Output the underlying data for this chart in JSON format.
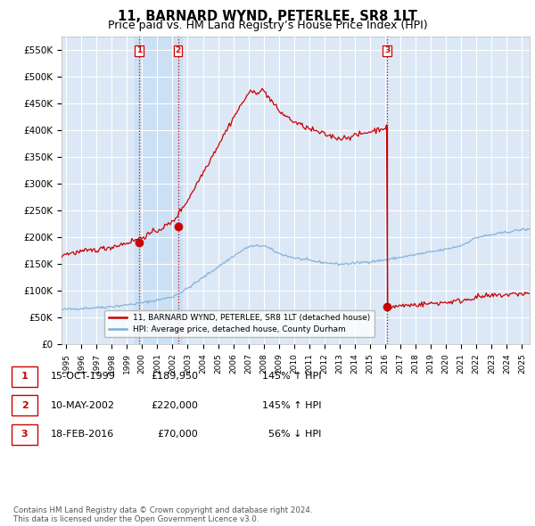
{
  "title": "11, BARNARD WYND, PETERLEE, SR8 1LT",
  "subtitle": "Price paid vs. HM Land Registry’s House Price Index (HPI)",
  "xlim_start": 1994.7,
  "xlim_end": 2025.5,
  "ylim": [
    0,
    575000
  ],
  "yticks": [
    0,
    50000,
    100000,
    150000,
    200000,
    250000,
    300000,
    350000,
    400000,
    450000,
    500000,
    550000
  ],
  "ytick_labels": [
    "£0",
    "£50K",
    "£100K",
    "£150K",
    "£200K",
    "£250K",
    "£300K",
    "£350K",
    "£400K",
    "£450K",
    "£500K",
    "£550K"
  ],
  "xtick_years": [
    1995,
    1996,
    1997,
    1998,
    1999,
    2000,
    2001,
    2002,
    2003,
    2004,
    2005,
    2006,
    2007,
    2008,
    2009,
    2010,
    2011,
    2012,
    2013,
    2014,
    2015,
    2016,
    2017,
    2018,
    2019,
    2020,
    2021,
    2022,
    2023,
    2024,
    2025
  ],
  "sale_dates": [
    1999.79,
    2002.36,
    2016.13
  ],
  "sale_prices": [
    189950,
    220000,
    70000
  ],
  "sale_labels": [
    "1",
    "2",
    "3"
  ],
  "vline_color": "#cc0000",
  "sale_marker_color": "#cc0000",
  "hpi_line_color": "#7aadda",
  "price_line_color": "#cc0000",
  "legend_label_price": "11, BARNARD WYND, PETERLEE, SR8 1LT (detached house)",
  "legend_label_hpi": "HPI: Average price, detached house, County Durham",
  "table_data": [
    [
      "1",
      "15-OCT-1999",
      "£189,950",
      "145% ↑ HPI"
    ],
    [
      "2",
      "10-MAY-2002",
      "£220,000",
      "145% ↑ HPI"
    ],
    [
      "3",
      "18-FEB-2016",
      "£70,000",
      "56% ↓ HPI"
    ]
  ],
  "footnote": "Contains HM Land Registry data © Crown copyright and database right 2024.\nThis data is licensed under the Open Government Licence v3.0.",
  "bg_color": "#ffffff",
  "plot_bg_color": "#dce8f5",
  "grid_color": "#ffffff",
  "title_fontsize": 10.5,
  "subtitle_fontsize": 9
}
